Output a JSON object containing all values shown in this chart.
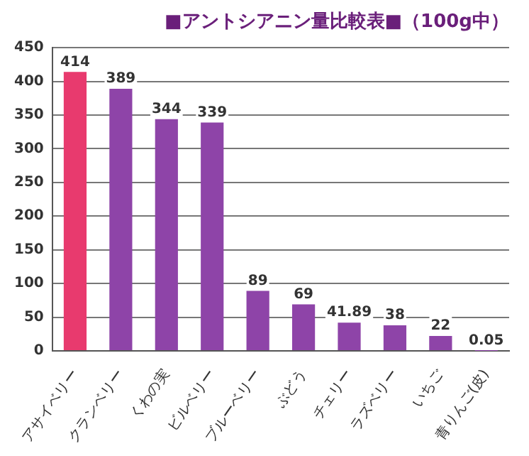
{
  "chart_data": {
    "type": "bar",
    "title": "■アントシアニン量比較表■（100g中）",
    "categories": [
      "アサイベリー",
      "クランベリー",
      "くわの実",
      "ビルベリー",
      "ブルーベリー",
      "ぶどう",
      "チェリー",
      "ラズベリー",
      "いちご",
      "青りんご(皮)"
    ],
    "values": [
      414,
      389,
      344,
      339,
      89,
      69,
      41.89,
      38,
      22,
      0.05
    ],
    "value_labels": [
      "414",
      "389",
      "344",
      "339",
      "89",
      "69",
      "41.89",
      "38",
      "22",
      "0.05"
    ],
    "colors": [
      "#e83a6e",
      "#8e44a8",
      "#8e44a8",
      "#8e44a8",
      "#8e44a8",
      "#8e44a8",
      "#8e44a8",
      "#8e44a8",
      "#8e44a8",
      "#8e44a8"
    ],
    "ylim": [
      0,
      450
    ],
    "yticks": [
      0,
      50,
      100,
      150,
      200,
      250,
      300,
      350,
      400,
      450
    ],
    "grid": "y",
    "legend": false
  }
}
